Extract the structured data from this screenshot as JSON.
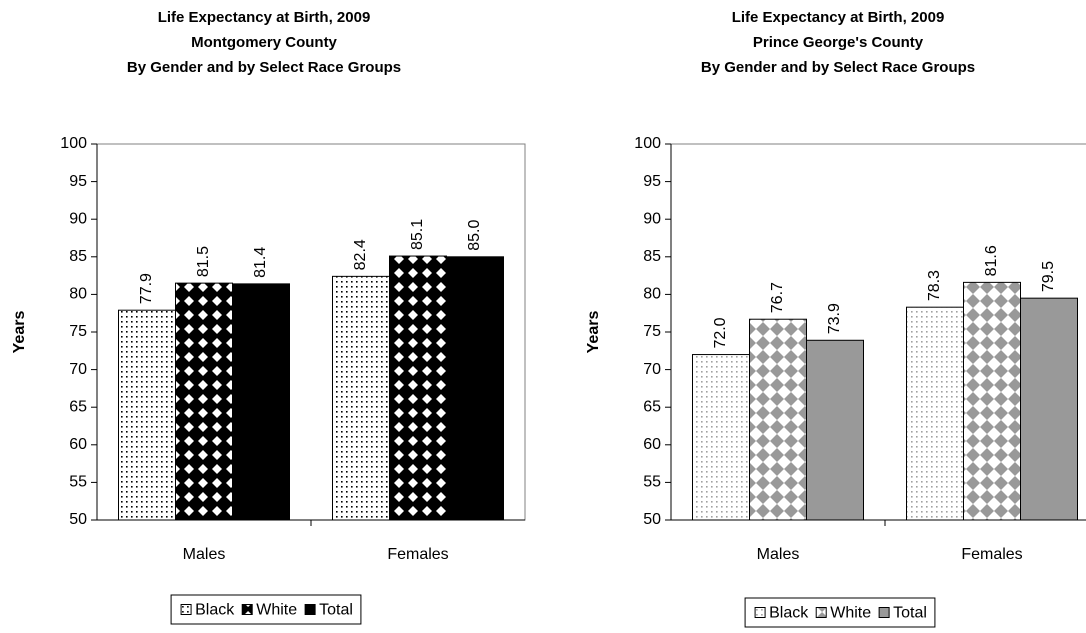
{
  "chart_data": [
    {
      "type": "bar",
      "title": [
        "Life Expectancy at Birth, 2009",
        "Montgomery County",
        "By Gender and by Select Race Groups"
      ],
      "y_label": "Years",
      "categories": [
        "Males",
        "Females"
      ],
      "series": [
        {
          "name": "Black",
          "color": "#000000",
          "pattern": "dots",
          "values": [
            77.9,
            82.4
          ],
          "value_labels": [
            "77.9",
            "82.4"
          ]
        },
        {
          "name": "White",
          "color": "#000000",
          "pattern": "diamonds",
          "values": [
            81.5,
            85.1
          ],
          "value_labels": [
            "81.5",
            "85.1"
          ]
        },
        {
          "name": "Total",
          "color": "#000000",
          "pattern": "solid",
          "values": [
            81.4,
            85.0
          ],
          "value_labels": [
            "81.4",
            "85.0"
          ]
        }
      ],
      "ylim": [
        50,
        100
      ],
      "yticks": [
        50,
        55,
        60,
        65,
        70,
        75,
        80,
        85,
        90,
        95,
        100
      ],
      "legend": "bottom"
    },
    {
      "type": "bar",
      "title": [
        "Life Expectancy at Birth, 2009",
        "Prince George's County",
        "By Gender and by Select Race Groups"
      ],
      "y_label": "Years",
      "categories": [
        "Males",
        "Females"
      ],
      "series": [
        {
          "name": "Black",
          "color": "#a0a0a0",
          "pattern": "dots",
          "values": [
            72.0,
            78.3
          ],
          "value_labels": [
            "72.0",
            "78.3"
          ]
        },
        {
          "name": "White",
          "color": "#999999",
          "pattern": "diamonds",
          "values": [
            76.7,
            81.6
          ],
          "value_labels": [
            "76.7",
            "81.6"
          ]
        },
        {
          "name": "Total",
          "color": "#999999",
          "pattern": "solid",
          "values": [
            73.9,
            79.5
          ],
          "value_labels": [
            "73.9",
            "79.5"
          ]
        }
      ],
      "ylim": [
        50,
        100
      ],
      "yticks": [
        50,
        55,
        60,
        65,
        70,
        75,
        80,
        85,
        90,
        95,
        100
      ],
      "legend": "bottom"
    }
  ]
}
